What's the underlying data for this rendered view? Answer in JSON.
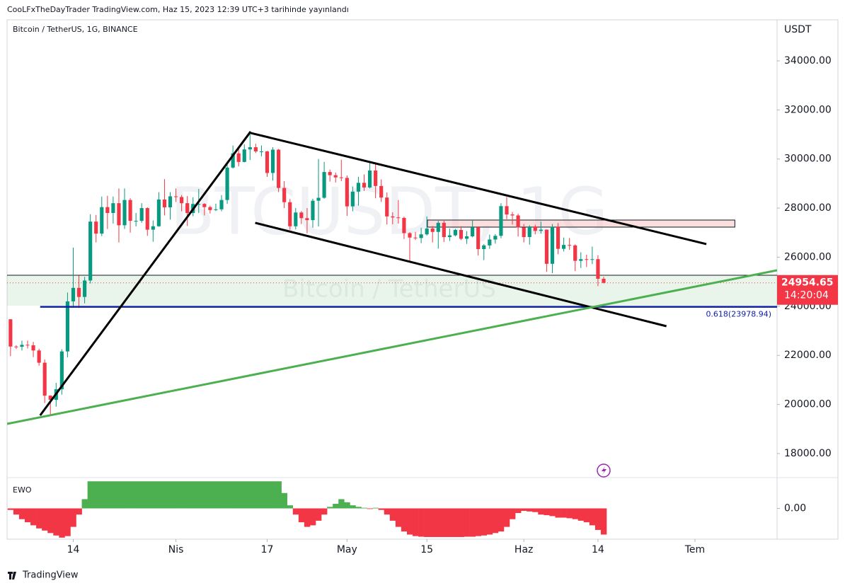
{
  "header": {
    "text": "CooLFxTheDayTrader TradingView.com, Haz 15, 2023 12:39 UTC+3 tarihinde yayınlandı"
  },
  "footer": {
    "brand": "TradingView"
  },
  "chart_data": {
    "type": "candlestick",
    "title": "Bitcoin / TetherUS, 1G, BINANCE",
    "currency": "USDT",
    "watermark": [
      "BTCUSDT, 1G",
      "Bitcoin / TetherUS"
    ],
    "up_color": "#089981",
    "down_color": "#f23645",
    "xlim": [
      -0.6,
      134.4
    ],
    "xticks": [
      {
        "value": 11,
        "label": "14"
      },
      {
        "value": 29,
        "label": "Nis"
      },
      {
        "value": 45,
        "label": "17"
      },
      {
        "value": 59,
        "label": "May"
      },
      {
        "value": 73,
        "label": "15"
      },
      {
        "value": 90,
        "label": "Haz"
      },
      {
        "value": 103,
        "label": "14"
      },
      {
        "value": 120,
        "label": "Tem"
      }
    ],
    "ylim": [
      17020,
      35670
    ],
    "yticks": [
      {
        "value": 18000,
        "label": "18000.00"
      },
      {
        "value": 20000,
        "label": "20000.00"
      },
      {
        "value": 22000,
        "label": "22000.00"
      },
      {
        "value": 24000,
        "label": "24000.00"
      },
      {
        "value": 26000,
        "label": "26000.00"
      },
      {
        "value": 28000,
        "label": "28000.00"
      },
      {
        "value": 30000,
        "label": "30000.00"
      },
      {
        "value": 32000,
        "label": "32000.00"
      },
      {
        "value": 34000,
        "label": "34000.00"
      }
    ],
    "grid": false,
    "last_price": 24954.65,
    "countdown": "14:20:04",
    "ohlc": [
      [
        23470,
        23480,
        21970,
        22360
      ],
      [
        22360,
        22410,
        22260,
        22350
      ],
      [
        22350,
        22600,
        22200,
        22430
      ],
      [
        22430,
        22600,
        22280,
        22410
      ],
      [
        22410,
        22550,
        21930,
        22200
      ],
      [
        22200,
        22270,
        21580,
        21700
      ],
      [
        21700,
        21830,
        20060,
        20360
      ],
      [
        20360,
        20370,
        19550,
        20190
      ],
      [
        20190,
        20880,
        19910,
        20620
      ],
      [
        20620,
        22250,
        20400,
        22160
      ],
      [
        22160,
        24560,
        21920,
        24200
      ],
      [
        24200,
        26390,
        23960,
        24750
      ],
      [
        24750,
        25250,
        23930,
        24380
      ],
      [
        24380,
        25200,
        24120,
        25050
      ],
      [
        25050,
        27750,
        24930,
        27450
      ],
      [
        27450,
        27720,
        26600,
        26960
      ],
      [
        26960,
        28470,
        26860,
        28040
      ],
      [
        28040,
        28500,
        27150,
        27800
      ],
      [
        27800,
        28470,
        27370,
        28200
      ],
      [
        28200,
        28800,
        26600,
        27300
      ],
      [
        27300,
        28800,
        27150,
        28330
      ],
      [
        28330,
        28400,
        27000,
        27480
      ],
      [
        27480,
        27800,
        27250,
        27480
      ],
      [
        27480,
        28200,
        27400,
        28000
      ],
      [
        28000,
        28030,
        26870,
        27120
      ],
      [
        27120,
        27500,
        26630,
        27260
      ],
      [
        27260,
        28650,
        27240,
        28350
      ],
      [
        28350,
        29180,
        27700,
        28030
      ],
      [
        28030,
        28650,
        27530,
        28480
      ],
      [
        28480,
        28800,
        28250,
        28450
      ],
      [
        28450,
        28530,
        27870,
        28200
      ],
      [
        28200,
        28490,
        27270,
        27800
      ],
      [
        27800,
        28440,
        27670,
        28170
      ],
      [
        28170,
        28780,
        27800,
        28170
      ],
      [
        28170,
        28200,
        27700,
        28040
      ],
      [
        28040,
        28100,
        27780,
        27920
      ],
      [
        27920,
        28180,
        27880,
        27950
      ],
      [
        27950,
        28530,
        27870,
        28330
      ],
      [
        28330,
        29770,
        28170,
        29650
      ],
      [
        29650,
        30550,
        29610,
        30230
      ],
      [
        30230,
        30480,
        29700,
        29880
      ],
      [
        29880,
        30600,
        29860,
        30390
      ],
      [
        30390,
        31000,
        29960,
        30480
      ],
      [
        30480,
        30620,
        30240,
        30310
      ],
      [
        30310,
        30550,
        30110,
        30310
      ],
      [
        30310,
        30330,
        29270,
        29430
      ],
      [
        29430,
        30480,
        29120,
        30380
      ],
      [
        30380,
        30410,
        28650,
        28820
      ],
      [
        28820,
        29100,
        28000,
        28240
      ],
      [
        28240,
        28370,
        27120,
        27260
      ],
      [
        27260,
        28000,
        27130,
        27820
      ],
      [
        27820,
        27880,
        27350,
        27590
      ],
      [
        27590,
        28000,
        26970,
        27510
      ],
      [
        27510,
        28380,
        27200,
        28300
      ],
      [
        28300,
        30000,
        27250,
        28420
      ],
      [
        28420,
        29880,
        28380,
        29470
      ],
      [
        29470,
        29570,
        29080,
        29340
      ],
      [
        29340,
        29450,
        29040,
        29250
      ],
      [
        29250,
        29970,
        29100,
        29230
      ],
      [
        29230,
        29330,
        27680,
        28070
      ],
      [
        28070,
        28880,
        27870,
        28670
      ],
      [
        28670,
        29270,
        28100,
        29030
      ],
      [
        29030,
        29370,
        28700,
        28840
      ],
      [
        28840,
        29850,
        28800,
        29530
      ],
      [
        29530,
        29840,
        28400,
        28900
      ],
      [
        28900,
        29170,
        28250,
        28430
      ],
      [
        28430,
        28640,
        27330,
        27660
      ],
      [
        27660,
        27830,
        27340,
        27620
      ],
      [
        27620,
        28330,
        27370,
        27600
      ],
      [
        27600,
        27650,
        26740,
        26980
      ],
      [
        26980,
        27020,
        25810,
        26800
      ],
      [
        26800,
        27030,
        26700,
        26780
      ],
      [
        26780,
        27200,
        26570,
        26930
      ],
      [
        26930,
        27660,
        26880,
        27170
      ],
      [
        27170,
        27270,
        26600,
        27030
      ],
      [
        27030,
        27480,
        26350,
        27400
      ],
      [
        27400,
        27480,
        26620,
        26820
      ],
      [
        26820,
        27170,
        26660,
        26890
      ],
      [
        26890,
        27150,
        26850,
        27110
      ],
      [
        27110,
        27260,
        26700,
        26750
      ],
      [
        26750,
        27060,
        26540,
        26850
      ],
      [
        26850,
        27490,
        26810,
        27220
      ],
      [
        27220,
        27250,
        26070,
        26330
      ],
      [
        26330,
        26530,
        25880,
        26480
      ],
      [
        26480,
        26920,
        26340,
        26720
      ],
      [
        26720,
        26940,
        26550,
        26870
      ],
      [
        26870,
        28200,
        26770,
        28080
      ],
      [
        28080,
        28450,
        27550,
        27740
      ],
      [
        27740,
        27840,
        27330,
        27700
      ],
      [
        27700,
        27770,
        26840,
        27210
      ],
      [
        27210,
        27350,
        26600,
        26820
      ],
      [
        26820,
        27300,
        26510,
        27250
      ],
      [
        27250,
        27320,
        26930,
        27070
      ],
      [
        27070,
        27450,
        26960,
        27120
      ],
      [
        27120,
        27130,
        25400,
        25730
      ],
      [
        25730,
        27350,
        25350,
        27230
      ],
      [
        27230,
        27390,
        26120,
        26340
      ],
      [
        26340,
        26800,
        26230,
        26500
      ],
      [
        26500,
        26780,
        26300,
        26480
      ],
      [
        26480,
        26520,
        25430,
        25850
      ],
      [
        25850,
        26200,
        25560,
        25920
      ],
      [
        25920,
        26100,
        25600,
        25900
      ],
      [
        25900,
        26430,
        25720,
        25920
      ],
      [
        25920,
        26080,
        24820,
        25120
      ],
      [
        25120,
        25200,
        24930,
        24955
      ]
    ],
    "trendlines": [
      {
        "color": "#000000",
        "x": [
          5.2,
          42.1
        ],
        "y": [
          19556,
          31117
        ]
      },
      {
        "color": "#000000",
        "x": [
          42.1,
          122.0
        ],
        "y": [
          31060,
          26533
        ]
      },
      {
        "color": "#000000",
        "x": [
          42.9,
          115.0
        ],
        "y": [
          27398,
          23189
        ]
      },
      {
        "color": "#4caf50",
        "x": [
          -0.6,
          134.4
        ],
        "y": [
          19210,
          25466
        ]
      }
    ],
    "zone": {
      "top": 25265,
      "bottom": 24025,
      "color": "#4caf50"
    },
    "box": {
      "x": [
        73.1,
        127.0
      ],
      "y": [
        27513,
        27225
      ],
      "color": "#f8c8c8"
    },
    "fib": {
      "price": 23978.94,
      "start": 5.2,
      "label": "0.618(23978.94)",
      "color": "#0d1fa3"
    },
    "ewo": {
      "name": "EWO",
      "ylim": [
        -1,
        1
      ],
      "yticks": [
        {
          "value": 0,
          "label": "0.00"
        }
      ],
      "up_color": "#4caf50",
      "down_color": "#f23645",
      "values": [
        -0.05,
        -0.2,
        -0.35,
        -0.45,
        -0.55,
        -0.65,
        -0.72,
        -0.8,
        -0.88,
        -0.95,
        -0.9,
        -0.6,
        -0.2,
        0.3,
        0.88,
        0.88,
        0.88,
        0.88,
        0.88,
        0.88,
        0.88,
        0.88,
        0.88,
        0.88,
        0.88,
        0.88,
        0.88,
        0.88,
        0.88,
        0.88,
        0.88,
        0.88,
        0.88,
        0.88,
        0.88,
        0.88,
        0.88,
        0.88,
        0.88,
        0.88,
        0.88,
        0.88,
        0.88,
        0.88,
        0.88,
        0.88,
        0.88,
        0.88,
        0.5,
        0.1,
        -0.2,
        -0.45,
        -0.6,
        -0.55,
        -0.4,
        -0.2,
        0.05,
        0.15,
        0.3,
        0.2,
        0.1,
        0.05,
        0.02,
        -0.02,
        0.02,
        -0.05,
        -0.2,
        -0.4,
        -0.6,
        -0.75,
        -0.85,
        -0.9,
        -0.92,
        -0.93,
        -0.93,
        -0.93,
        -0.93,
        -0.93,
        -0.93,
        -0.93,
        -0.92,
        -0.92,
        -0.9,
        -0.88,
        -0.85,
        -0.8,
        -0.75,
        -0.6,
        -0.35,
        -0.15,
        -0.08,
        -0.1,
        -0.12,
        -0.2,
        -0.22,
        -0.25,
        -0.3,
        -0.3,
        -0.32,
        -0.35,
        -0.4,
        -0.45,
        -0.55,
        -0.7,
        -0.85
      ]
    }
  }
}
